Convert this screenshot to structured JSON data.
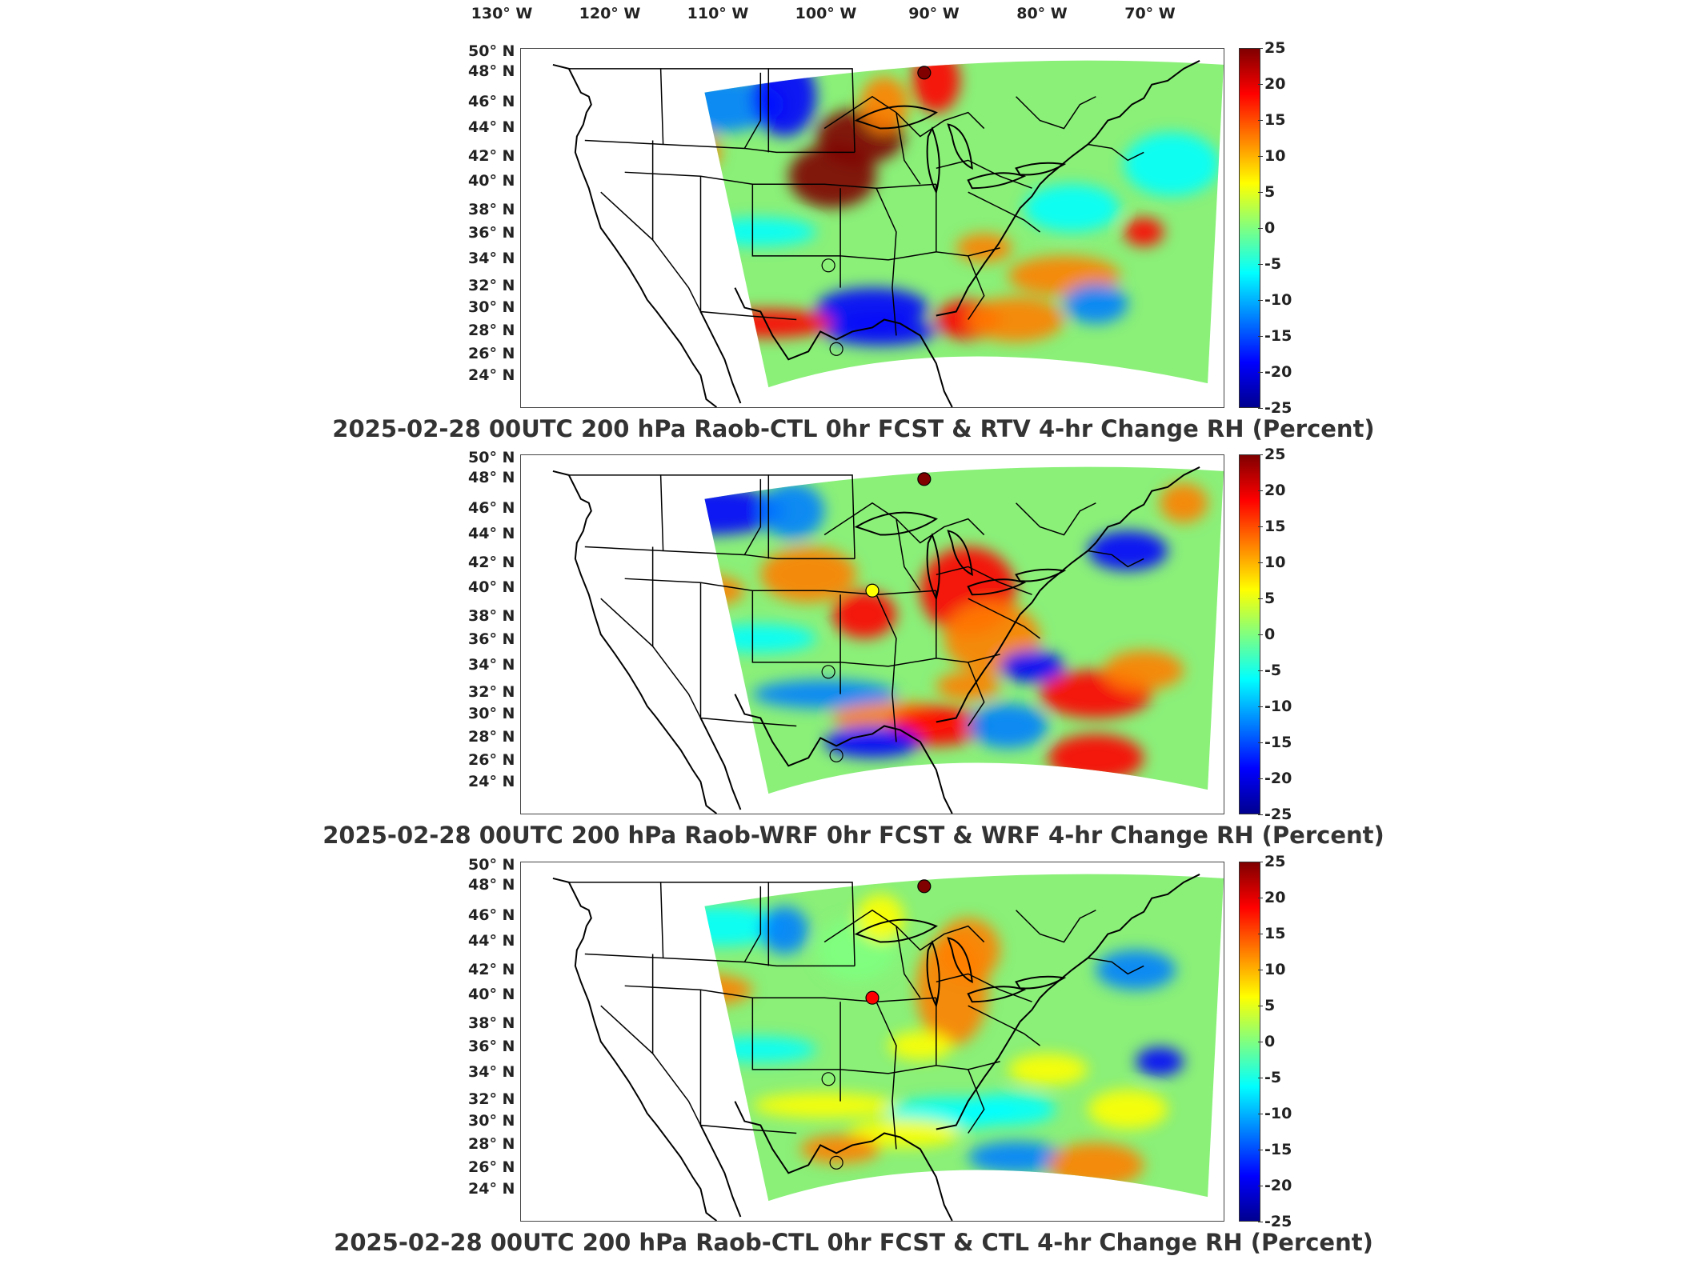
{
  "longitude_labels": [
    "130° W",
    "120° W",
    "110° W",
    "100° W",
    "90° W",
    "80° W",
    "70° W"
  ],
  "latitude_labels": [
    "50° N",
    "48° N",
    "46° N",
    "44° N",
    "42° N",
    "40° N",
    "38° N",
    "36° N",
    "34° N",
    "32° N",
    "30° N",
    "28° N",
    "26° N",
    "24° N"
  ],
  "colorbar": {
    "ticks": [
      "25",
      "20",
      "15",
      "10",
      "5",
      "0",
      "-5",
      "-10",
      "-15",
      "-20",
      "-25"
    ],
    "range": [
      -25,
      25
    ],
    "colors": [
      "#00008f",
      "#0000ff",
      "#0080ff",
      "#00ffff",
      "#80ff80",
      "#ffff00",
      "#ff8000",
      "#ff0000",
      "#800000"
    ]
  },
  "panels": [
    {
      "title": "2025-02-28 00UTC 200 hPa Raob-CTL 0hr FCST & RTV 4-hr Change RH (Percent)",
      "stations": [
        {
          "name": "north",
          "value": 20
        },
        {
          "name": "amarillo",
          "value": 0
        },
        {
          "name": "del-rio",
          "value": 0
        }
      ]
    },
    {
      "title": "2025-02-28 00UTC 200 hPa Raob-WRF 0hr FCST & WRF 4-hr Change RH (Percent)",
      "stations": [
        {
          "name": "north",
          "value": 20
        },
        {
          "name": "omaha",
          "value": 5
        },
        {
          "name": "amarillo",
          "value": 0
        },
        {
          "name": "del-rio",
          "value": 0
        }
      ]
    },
    {
      "title": "2025-02-28 00UTC 200 hPa Raob-CTL 0hr FCST & CTL 4-hr Change RH (Percent)",
      "stations": [
        {
          "name": "north",
          "value": 20
        },
        {
          "name": "omaha",
          "value": 15
        },
        {
          "name": "amarillo",
          "value": 0
        },
        {
          "name": "del-rio",
          "value": 0
        }
      ]
    }
  ]
}
